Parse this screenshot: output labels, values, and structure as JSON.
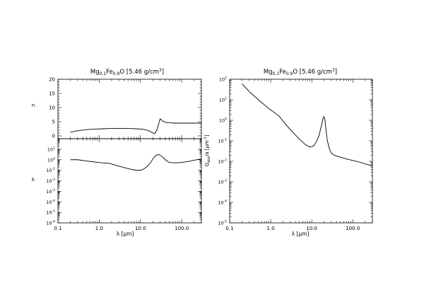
{
  "chart_data": [
    {
      "type": "line",
      "panel": "left-top",
      "title": {
        "base1": "Mg",
        "sub1": "0.1",
        "base2": "Fe",
        "sub2": "0.9",
        "base3": "O [5.46 g/cm",
        "sup": "3",
        "base4": "]"
      },
      "ylabel": "n",
      "xscale": "log",
      "xlim": [
        0.1,
        300
      ],
      "ylim": [
        -1,
        20
      ],
      "yticks": [
        0,
        5,
        10,
        15,
        20
      ],
      "yticklabels": [
        "0",
        "5",
        "10",
        "15",
        "20"
      ],
      "series": [
        {
          "x": [
            0.2,
            0.3,
            0.5,
            0.8,
            1.2,
            2.0,
            3.0,
            5.0,
            8.0,
            12,
            16,
            20,
            22,
            25,
            28,
            30,
            32,
            35,
            40,
            50,
            70,
            100,
            150,
            200,
            300
          ],
          "y": [
            1.3,
            1.8,
            2.2,
            2.4,
            2.5,
            2.6,
            2.6,
            2.6,
            2.5,
            2.3,
            1.8,
            1.0,
            0.8,
            2.0,
            4.5,
            6.0,
            5.7,
            5.2,
            4.8,
            4.6,
            4.5,
            4.5,
            4.5,
            4.5,
            4.5
          ]
        }
      ]
    },
    {
      "type": "line",
      "panel": "left-bottom",
      "xlabel": "λ [μm]",
      "ylabel": "k",
      "xscale": "log",
      "yscale": "log",
      "xlim": [
        0.1,
        300
      ],
      "ylim": [
        1e-06,
        100
      ],
      "xticks": [
        0.1,
        1,
        10,
        100
      ],
      "xticklabels": [
        "0.1",
        "1.0",
        "10.0",
        "100.0"
      ],
      "yticks": [
        1e-06,
        1e-05,
        0.0001,
        0.001,
        0.01,
        0.1,
        1,
        10
      ],
      "ytickexponents": [
        "-6",
        "-5",
        "-4",
        "-3",
        "-2",
        "-1",
        "0",
        "1"
      ],
      "series": [
        {
          "x": [
            0.2,
            0.3,
            0.5,
            0.8,
            1.2,
            1.8,
            2.5,
            4.0,
            6.0,
            8.0,
            10,
            12,
            15,
            18,
            20,
            22,
            25,
            28,
            30,
            35,
            40,
            50,
            70,
            100,
            150,
            200,
            300
          ],
          "y": [
            1.0,
            1.0,
            0.75,
            0.6,
            0.5,
            0.45,
            0.3,
            0.18,
            0.12,
            0.1,
            0.1,
            0.13,
            0.25,
            0.6,
            1.2,
            2.0,
            2.8,
            3.1,
            2.7,
            1.7,
            1.0,
            0.55,
            0.5,
            0.55,
            0.7,
            0.9,
            1.2
          ]
        }
      ]
    },
    {
      "type": "line",
      "panel": "right",
      "title": {
        "base1": "Mg",
        "sub1": "0.1",
        "base2": "Fe",
        "sub2": "0.9",
        "base3": "O [5.46 g/cm",
        "sup": "3",
        "base4": "]"
      },
      "xlabel": "λ [μm]",
      "ylabel": {
        "base": "Q",
        "sub": "abs",
        "mid": "/a [μm",
        "sup": "-1",
        "end": "]"
      },
      "xscale": "log",
      "yscale": "log",
      "xlim": [
        0.1,
        300
      ],
      "ylim": [
        1e-05,
        100
      ],
      "xticks": [
        0.1,
        1,
        10,
        100
      ],
      "xticklabels": [
        "0.1",
        "1.0",
        "10.0",
        "100.0"
      ],
      "yticks": [
        1e-05,
        0.0001,
        0.001,
        0.01,
        0.1,
        1,
        10,
        100
      ],
      "ytickexponents": [
        "-5",
        "-4",
        "-3",
        "-2",
        "-1",
        "0",
        "1",
        "2"
      ],
      "series": [
        {
          "x": [
            0.2,
            0.3,
            0.5,
            0.8,
            1.0,
            1.3,
            1.6,
            2.0,
            3.0,
            5.0,
            7.0,
            9.0,
            11,
            13,
            15,
            17,
            19,
            20,
            21,
            22,
            24,
            27,
            30,
            35,
            40,
            50,
            70,
            100,
            150,
            200,
            300
          ],
          "y": [
            60,
            25,
            10,
            4.5,
            3.2,
            2.2,
            1.6,
            0.9,
            0.35,
            0.12,
            0.065,
            0.05,
            0.055,
            0.09,
            0.18,
            0.5,
            1.3,
            1.5,
            1.0,
            0.4,
            0.1,
            0.04,
            0.025,
            0.02,
            0.018,
            0.016,
            0.013,
            0.011,
            0.009,
            0.0075,
            0.006
          ]
        }
      ]
    }
  ]
}
